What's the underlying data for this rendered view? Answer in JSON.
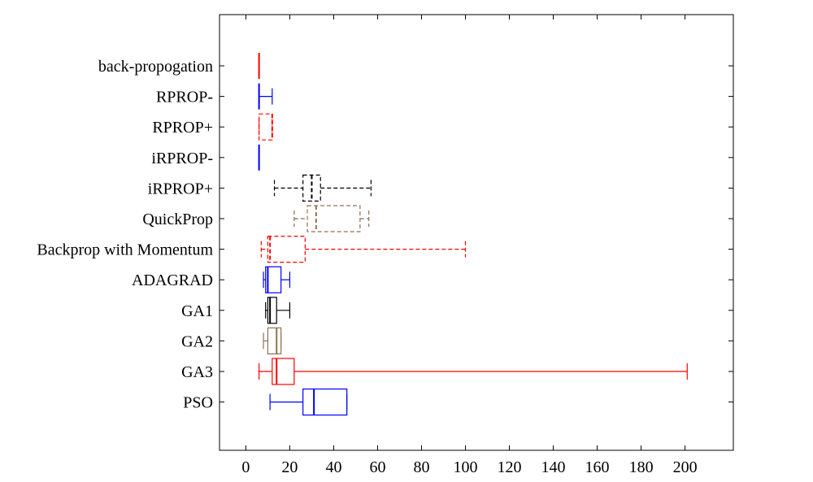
{
  "chart_data": {
    "type": "boxplot",
    "orientation": "horizontal",
    "xlim": [
      -12,
      222
    ],
    "xticks": [
      0,
      20,
      40,
      60,
      80,
      100,
      120,
      140,
      160,
      180,
      200
    ],
    "xtick_labels": [
      "0",
      "20",
      "40",
      "60",
      "80",
      "100",
      "120",
      "140",
      "160",
      "180",
      "200"
    ],
    "grid": false,
    "categories": [
      "back-propogation",
      "RPROP-",
      "RPROP+",
      "iRPROP-",
      "iRPROP+",
      "QuickProp",
      "Backprop with Momentum",
      "ADAGRAD",
      "GA1",
      "GA2",
      "GA3",
      "PSO"
    ],
    "series": [
      {
        "category": "back-propogation",
        "min": 6,
        "q1": 6,
        "median": 6,
        "q3": 6,
        "max": 6,
        "color": "#ff0000",
        "dashed": false
      },
      {
        "category": "RPROP-",
        "min": 6,
        "q1": 6,
        "median": 6,
        "q3": 6,
        "max": 12,
        "color": "#0000ff",
        "dashed": false
      },
      {
        "category": "RPROP+",
        "min": 6,
        "q1": 6,
        "median": 12,
        "q3": 12,
        "max": 12,
        "color": "#ff0000",
        "dashed": true
      },
      {
        "category": "iRPROP-",
        "min": 6,
        "q1": 6,
        "median": 6,
        "q3": 6,
        "max": 6,
        "color": "#0000ff",
        "dashed": false
      },
      {
        "category": "iRPROP+",
        "min": 13,
        "q1": 26,
        "median": 30,
        "q3": 34,
        "max": 57,
        "color": "#000000",
        "dashed": true
      },
      {
        "category": "QuickProp",
        "min": 22,
        "q1": 28,
        "median": 32,
        "q3": 52,
        "max": 56,
        "color": "#8b7355",
        "dashed": true
      },
      {
        "category": "Backprop with Momentum",
        "min": 7,
        "q1": 10,
        "median": 11,
        "q3": 27,
        "max": 100,
        "color": "#ff0000",
        "dashed": true
      },
      {
        "category": "ADAGRAD",
        "min": 8,
        "q1": 9,
        "median": 10,
        "q3": 16,
        "max": 20,
        "color": "#0000ff",
        "dashed": false
      },
      {
        "category": "GA1",
        "min": 9,
        "q1": 10,
        "median": 11,
        "q3": 14,
        "max": 20,
        "color": "#000000",
        "dashed": false
      },
      {
        "category": "GA2",
        "min": 8,
        "q1": 10,
        "median": 14,
        "q3": 16,
        "max": 16,
        "color": "#8b7355",
        "dashed": false
      },
      {
        "category": "GA3",
        "min": 6,
        "q1": 12,
        "median": 14,
        "q3": 22,
        "max": 201,
        "color": "#ff0000",
        "dashed": false
      },
      {
        "category": "PSO",
        "min": 11,
        "q1": 26,
        "median": 31,
        "q3": 46,
        "max": 46,
        "color": "#0000ff",
        "dashed": false
      }
    ]
  }
}
